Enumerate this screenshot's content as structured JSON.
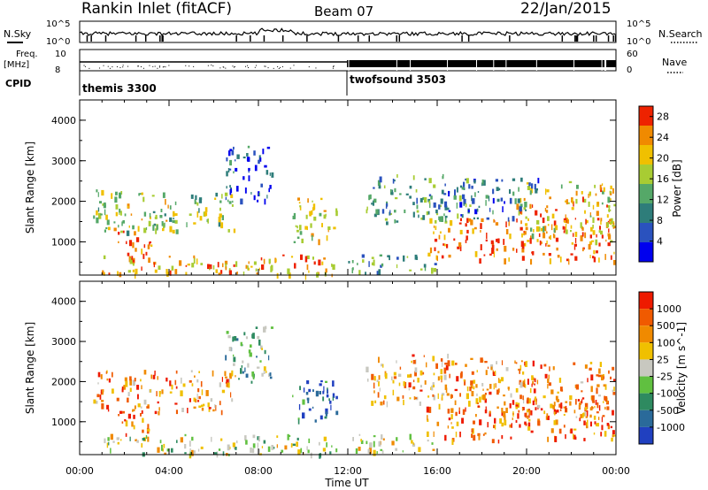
{
  "header": {
    "station": "Rankin Inlet (fitACF)",
    "beam": "Beam 07",
    "date": "22/Jan/2015"
  },
  "summary_panels": {
    "nsky_label": "N.Sky",
    "nsearch_label": "N.Search",
    "nsky_ticks": [
      "10^5",
      "10^0"
    ],
    "nsky_right_ticks": [
      "10^5",
      "10^0"
    ],
    "freq_label": "Freq.",
    "freq_unit": "[MHz]",
    "freq_ticks": [
      "10",
      "8"
    ],
    "nave_label": "Nave",
    "nave_ticks": [
      "60",
      "0"
    ],
    "cpid_label": "CPID",
    "cpid_modes": [
      {
        "name": "themis 3300",
        "start_hour": 0,
        "end_hour": 12
      },
      {
        "name": "twofsound 3503",
        "start_hour": 12,
        "end_hour": 24
      }
    ]
  },
  "chart_data": [
    {
      "type": "heatmap",
      "name": "Power",
      "ylabel": "Slant Range [km]",
      "xlabel": "Time UT",
      "x_ticks": [
        "00:00",
        "04:00",
        "08:00",
        "12:00",
        "16:00",
        "20:00",
        "00:00"
      ],
      "xlim_hours": [
        0,
        24
      ],
      "ylim": [
        180,
        4500
      ],
      "y_ticks": [
        1000,
        2000,
        3000,
        4000
      ],
      "colorbar": {
        "label": "Power [dB]",
        "ticks": [
          4,
          8,
          12,
          16,
          20,
          24,
          28
        ],
        "range": [
          0,
          30
        ],
        "colors": [
          "#0000ee",
          "#2a52be",
          "#2e7d7a",
          "#55a868",
          "#a8cc33",
          "#f0c000",
          "#f08a00",
          "#ee2200"
        ]
      },
      "echo_regions": [
        {
          "t0": 0.6,
          "t1": 7.0,
          "r0": 1250,
          "r1": 2300,
          "level": 0.55
        },
        {
          "t0": 1.6,
          "t1": 3.2,
          "r0": 700,
          "r1": 1300,
          "level": 0.9
        },
        {
          "t0": 0.8,
          "t1": 11.5,
          "r0": 200,
          "r1": 700,
          "level": 0.75
        },
        {
          "t0": 9.5,
          "t1": 11.5,
          "r0": 1000,
          "r1": 2100,
          "level": 0.65
        },
        {
          "t0": 6.5,
          "t1": 8.6,
          "r0": 2000,
          "r1": 3400,
          "level": 0.2
        },
        {
          "t0": 12.8,
          "t1": 16.5,
          "r0": 1500,
          "r1": 2700,
          "level": 0.4
        },
        {
          "t0": 15.5,
          "t1": 23.9,
          "r0": 550,
          "r1": 1600,
          "level": 0.85
        },
        {
          "t0": 19.5,
          "t1": 23.9,
          "r0": 1000,
          "r1": 2500,
          "level": 0.7
        },
        {
          "t0": 12.0,
          "t1": 16.0,
          "r0": 250,
          "r1": 700,
          "level": 0.4
        },
        {
          "t0": 16.0,
          "t1": 20.5,
          "r0": 1600,
          "r1": 2600,
          "level": 0.3
        }
      ]
    },
    {
      "type": "heatmap",
      "name": "Velocity",
      "ylabel": "Slant Range [km]",
      "xlabel": "Time UT",
      "x_ticks": [
        "00:00",
        "04:00",
        "08:00",
        "12:00",
        "16:00",
        "20:00",
        "00:00"
      ],
      "xlim_hours": [
        0,
        24
      ],
      "ylim": [
        180,
        4500
      ],
      "y_ticks": [
        1000,
        2000,
        3000,
        4000
      ],
      "colorbar": {
        "label": "Velocity [m s^-1]",
        "ticks": [
          "1000",
          "500",
          "100",
          "25",
          "-25",
          "-100",
          "-500",
          "-1000"
        ],
        "range": [
          -1000,
          1000
        ],
        "colors": [
          "#2040c0",
          "#2a6a9a",
          "#2e8a60",
          "#60c040",
          "#c8c8c0",
          "#f0c000",
          "#f08a00",
          "#f05a00",
          "#ee1a00"
        ]
      },
      "echo_regions": [
        {
          "t0": 0.6,
          "t1": 7.0,
          "r0": 1250,
          "r1": 2300,
          "level": 0.72
        },
        {
          "t0": 1.6,
          "t1": 3.2,
          "r0": 700,
          "r1": 1300,
          "level": 0.8
        },
        {
          "t0": 0.8,
          "t1": 11.5,
          "r0": 200,
          "r1": 700,
          "level": 0.48
        },
        {
          "t0": 9.5,
          "t1": 11.5,
          "r0": 1000,
          "r1": 2100,
          "level": 0.15
        },
        {
          "t0": 6.5,
          "t1": 8.6,
          "r0": 2000,
          "r1": 3400,
          "level": 0.35
        },
        {
          "t0": 12.8,
          "t1": 16.5,
          "r0": 1500,
          "r1": 2700,
          "level": 0.7
        },
        {
          "t0": 15.5,
          "t1": 23.9,
          "r0": 550,
          "r1": 1600,
          "level": 0.8
        },
        {
          "t0": 19.5,
          "t1": 23.9,
          "r0": 1000,
          "r1": 2500,
          "level": 0.75
        },
        {
          "t0": 12.0,
          "t1": 16.0,
          "r0": 250,
          "r1": 700,
          "level": 0.55
        },
        {
          "t0": 16.0,
          "t1": 20.5,
          "r0": 1600,
          "r1": 2600,
          "level": 0.72
        }
      ]
    }
  ]
}
